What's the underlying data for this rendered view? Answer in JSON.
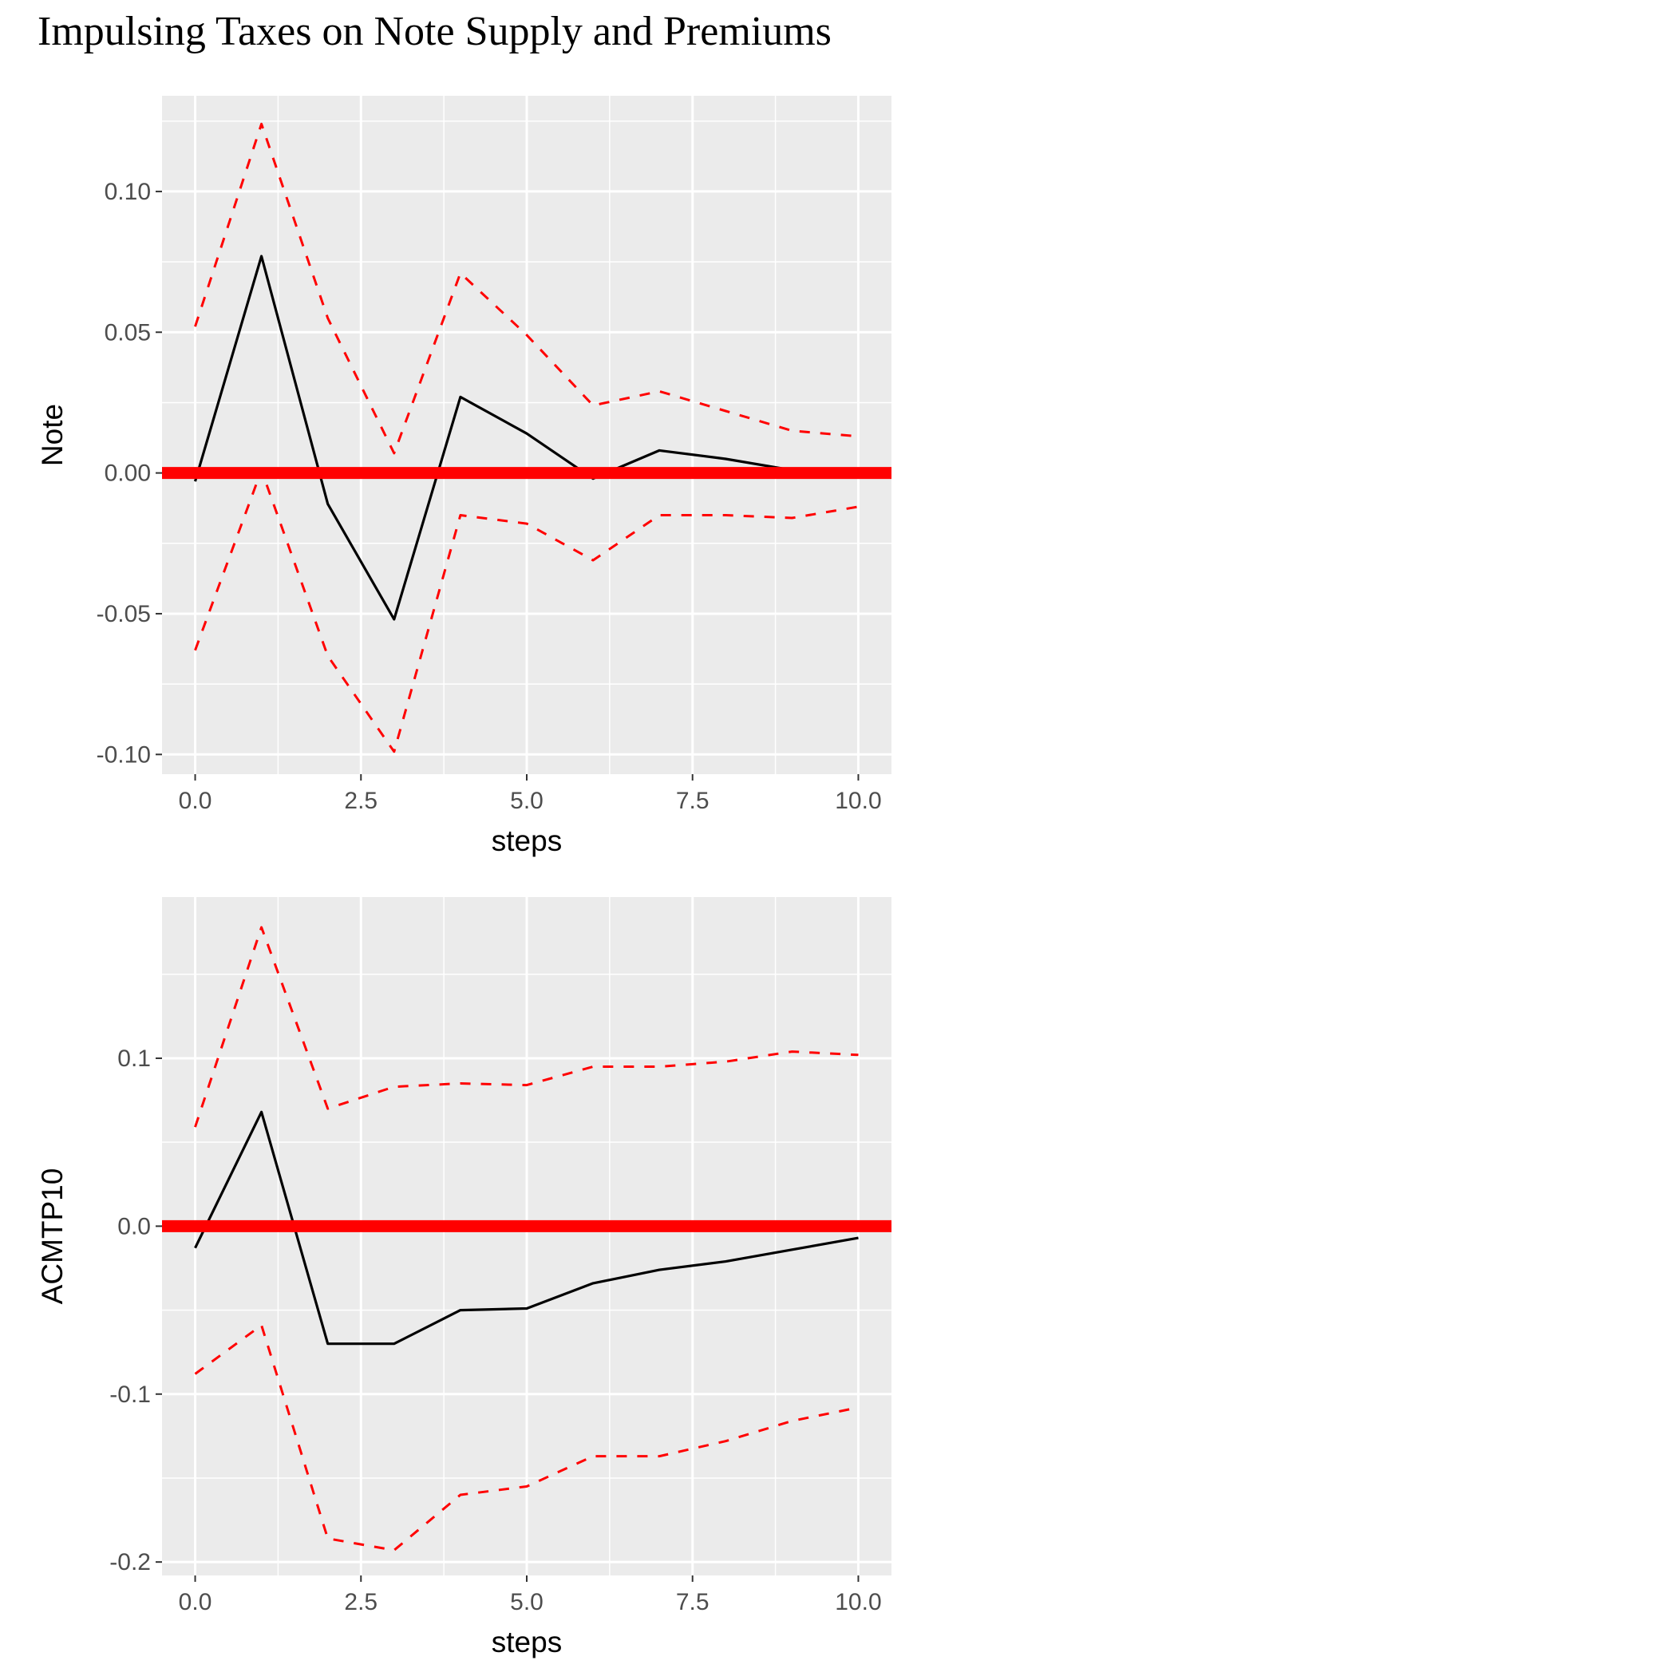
{
  "title": "Impulsing Taxes on Note Supply and Premiums",
  "chart_data": [
    {
      "type": "line",
      "title": "",
      "xlabel": "steps",
      "ylabel": "Note",
      "xlim": [
        -0.5,
        10.5
      ],
      "ylim": [
        -0.107,
        0.134
      ],
      "xticks": [
        0,
        2.5,
        5,
        7.5,
        10
      ],
      "xtick_labels": [
        "0.0",
        "2.5",
        "5.0",
        "7.5",
        "10.0"
      ],
      "yticks": [
        -0.1,
        -0.05,
        0,
        0.05,
        0.1
      ],
      "ytick_labels": [
        "-0.10",
        "-0.05",
        "0.00",
        "0.05",
        "0.10"
      ],
      "grid": true,
      "x": [
        0,
        1,
        2,
        3,
        4,
        5,
        6,
        7,
        8,
        9,
        10
      ],
      "series": [
        {
          "role": "response",
          "style": "solid",
          "color": "#000000",
          "values": [
            -0.003,
            0.077,
            -0.011,
            -0.052,
            0.027,
            0.014,
            -0.002,
            0.008,
            0.005,
            0.001,
            0.0
          ]
        },
        {
          "role": "upper",
          "style": "dashed",
          "color": "#ff0000",
          "values": [
            0.052,
            0.124,
            0.055,
            0.007,
            0.071,
            0.049,
            0.024,
            0.029,
            0.022,
            0.015,
            0.013
          ]
        },
        {
          "role": "lower",
          "style": "dashed",
          "color": "#ff0000",
          "values": [
            -0.063,
            0.001,
            -0.065,
            -0.099,
            -0.015,
            -0.018,
            -0.031,
            -0.015,
            -0.015,
            -0.016,
            -0.012
          ]
        }
      ],
      "reference_line": {
        "y": 0,
        "color": "#ff0000"
      }
    },
    {
      "type": "line",
      "title": "",
      "xlabel": "steps",
      "ylabel": "ACMTP10",
      "xlim": [
        -0.5,
        10.5
      ],
      "ylim": [
        -0.208,
        0.196
      ],
      "xticks": [
        0,
        2.5,
        5,
        7.5,
        10
      ],
      "xtick_labels": [
        "0.0",
        "2.5",
        "5.0",
        "7.5",
        "10.0"
      ],
      "yticks": [
        -0.2,
        -0.1,
        0,
        0.1
      ],
      "ytick_labels": [
        "-0.2",
        "-0.1",
        "0.0",
        "0.1"
      ],
      "grid": true,
      "x": [
        0,
        1,
        2,
        3,
        4,
        5,
        6,
        7,
        8,
        9,
        10
      ],
      "series": [
        {
          "role": "response",
          "style": "solid",
          "color": "#000000",
          "values": [
            -0.013,
            0.068,
            -0.07,
            -0.07,
            -0.05,
            -0.049,
            -0.034,
            -0.026,
            -0.021,
            -0.014,
            -0.007
          ]
        },
        {
          "role": "upper",
          "style": "dashed",
          "color": "#ff0000",
          "values": [
            0.059,
            0.178,
            0.07,
            0.083,
            0.085,
            0.084,
            0.095,
            0.095,
            0.098,
            0.104,
            0.102
          ]
        },
        {
          "role": "lower",
          "style": "dashed",
          "color": "#ff0000",
          "values": [
            -0.088,
            -0.059,
            -0.186,
            -0.193,
            -0.16,
            -0.155,
            -0.137,
            -0.137,
            -0.128,
            -0.116,
            -0.108
          ]
        }
      ],
      "reference_line": {
        "y": 0,
        "color": "#ff0000"
      }
    }
  ]
}
